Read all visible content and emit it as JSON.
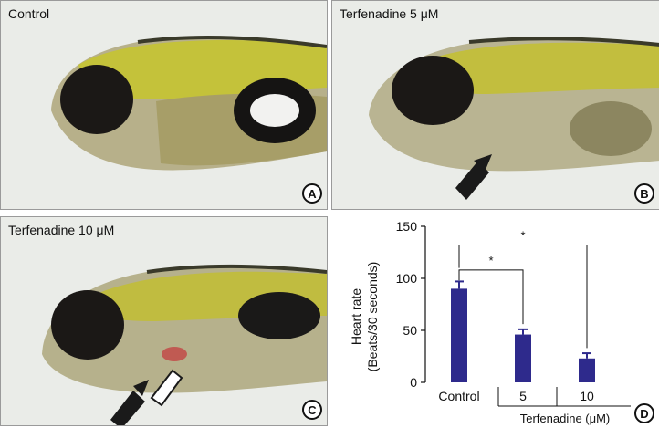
{
  "panels": [
    {
      "id": "A",
      "label": "Control",
      "badge": "A"
    },
    {
      "id": "B",
      "label": "Terfenadine 5 μM",
      "badge": "B"
    },
    {
      "id": "C",
      "label": "Terfenadine 10 μM",
      "badge": "C"
    }
  ],
  "chart_badge": "D",
  "chart_data": {
    "type": "bar",
    "categories": [
      "Control",
      "5",
      "10"
    ],
    "values": [
      90,
      46,
      23
    ],
    "errors": [
      7,
      5,
      5
    ],
    "ylabel_line1": "Heart rate",
    "ylabel_line2": "(Beats/30 seconds)",
    "group_label": "Terfenadine (μM)",
    "yticks": [
      "0",
      "50",
      "100",
      "150"
    ],
    "ylim": [
      0,
      150
    ],
    "significance": [
      "*",
      "*"
    ],
    "bar_color": "#2e2a8c",
    "grid": false
  }
}
